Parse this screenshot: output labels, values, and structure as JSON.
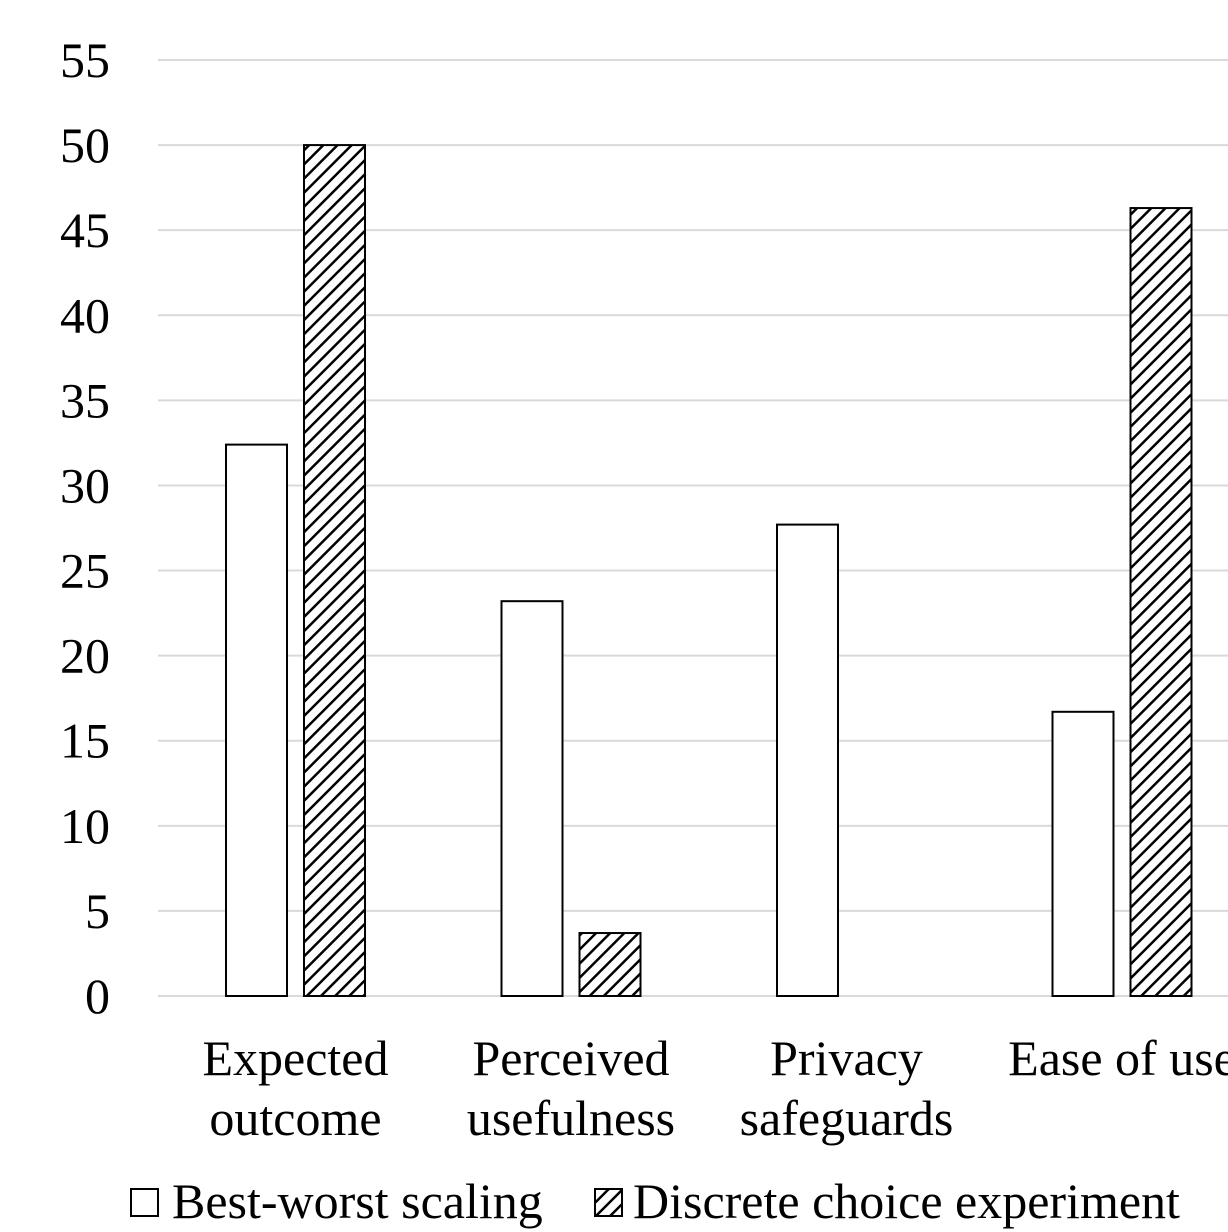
{
  "chart_data": {
    "type": "bar",
    "title": "",
    "xlabel": "",
    "ylabel": "",
    "categories": [
      [
        "Expected",
        "outcome"
      ],
      [
        "Perceived",
        "usefulness"
      ],
      [
        "Privacy",
        "safeguards"
      ],
      [
        "Ease of use"
      ]
    ],
    "series": [
      {
        "name": "Best-worst scaling",
        "values": [
          32.4,
          23.2,
          27.7,
          16.7
        ],
        "fill": "none",
        "stroke": "#000000"
      },
      {
        "name": "Discrete choice experiment",
        "values": [
          50.0,
          3.7,
          0.0,
          46.3
        ],
        "fill": "hatch",
        "stroke": "#000000"
      }
    ],
    "ylim": [
      0,
      55
    ],
    "yticks": [
      0,
      5,
      10,
      15,
      20,
      25,
      30,
      35,
      40,
      45,
      50,
      55
    ],
    "grid": true,
    "grid_color": "#d9d9d9",
    "legend_position": "bottom"
  }
}
